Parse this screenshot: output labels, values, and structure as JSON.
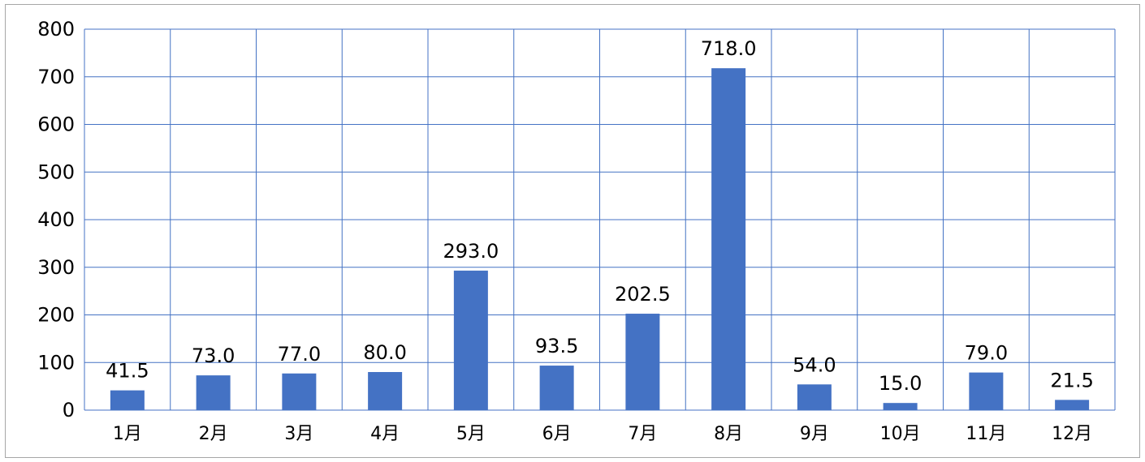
{
  "chart_data": {
    "type": "bar",
    "categories": [
      "1月",
      "2月",
      "3月",
      "4月",
      "5月",
      "6月",
      "7月",
      "8月",
      "9月",
      "10月",
      "11月",
      "12月"
    ],
    "values": [
      41.5,
      73.0,
      77.0,
      80.0,
      293.0,
      93.5,
      202.5,
      718.0,
      54.0,
      15.0,
      79.0,
      21.5
    ],
    "data_labels": [
      "41.5",
      "73.0",
      "77.0",
      "80.0",
      "293.0",
      "93.5",
      "202.5",
      "718.0",
      "54.0",
      "15.0",
      "79.0",
      "21.5"
    ],
    "y_ticks": [
      "0",
      "100",
      "200",
      "300",
      "400",
      "500",
      "600",
      "700",
      "800"
    ],
    "ylim": [
      0,
      800
    ],
    "title": "",
    "xlabel": "",
    "ylabel": "",
    "grid": true,
    "legend": "none",
    "colors": {
      "bar": "#4472c4",
      "grid": "#4472c4",
      "frame": "#a6a6a6"
    }
  }
}
